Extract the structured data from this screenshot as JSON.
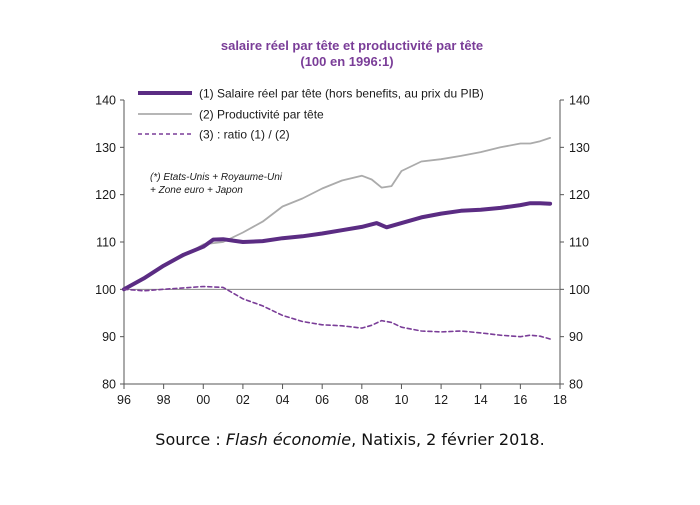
{
  "chart_data": {
    "type": "line",
    "title": "salaire réel par tête et productivité par tête",
    "subtitle": "(100 en 1996:1)",
    "x_tick_labels": [
      "96",
      "98",
      "00",
      "02",
      "04",
      "06",
      "08",
      "10",
      "12",
      "14",
      "16",
      "18"
    ],
    "x_ticks": [
      1996,
      1998,
      2000,
      2002,
      2004,
      2006,
      2008,
      2010,
      2012,
      2014,
      2016,
      2018
    ],
    "xlim": [
      1996,
      2018
    ],
    "ylim": [
      80,
      140
    ],
    "y_ticks": [
      80,
      90,
      100,
      110,
      120,
      130,
      140
    ],
    "secondary_y_ticks": [
      80,
      90,
      100,
      110,
      120,
      130,
      140
    ],
    "reference_line": 100,
    "grid": false,
    "legend_position": "top",
    "note": [
      "(*) Etats-Unis + Royaume-Uni",
      "+ Zone euro + Japon"
    ],
    "series": [
      {
        "name": "(1) Salaire réel par tête (hors benefits, au prix du PIB)",
        "color": "#5b2c83",
        "style": "solid-thick",
        "x": [
          1996,
          1997,
          1998,
          1999,
          2000,
          2000.5,
          2001,
          2001.5,
          2002,
          2003,
          2004,
          2005,
          2006,
          2007,
          2008,
          2008.75,
          2009.25,
          2010,
          2011,
          2012,
          2013,
          2014,
          2015,
          2016,
          2016.5,
          2017,
          2017.5
        ],
        "y": [
          100,
          102.3,
          105,
          107.3,
          109,
          110.5,
          110.6,
          110.3,
          110,
          110.2,
          110.8,
          111.2,
          111.8,
          112.5,
          113.2,
          114,
          113.1,
          114,
          115.2,
          116,
          116.6,
          116.8,
          117.2,
          117.8,
          118.2,
          118.2,
          118.1
        ]
      },
      {
        "name": "(2) Productivité par tête",
        "color": "#ababab",
        "style": "solid",
        "x": [
          1996,
          1997,
          1998,
          1999,
          2000,
          2001,
          2002,
          2003,
          2004,
          2005,
          2006,
          2007,
          2008,
          2008.5,
          2009,
          2009.5,
          2010,
          2011,
          2012,
          2013,
          2014,
          2015,
          2016,
          2016.5,
          2017,
          2017.5
        ],
        "y": [
          100,
          102.5,
          105,
          107,
          109.5,
          110,
          112,
          114.3,
          117.5,
          119.2,
          121.3,
          123,
          124,
          123.2,
          121.5,
          121.8,
          125,
          127,
          127.5,
          128.2,
          129,
          130,
          130.8,
          130.8,
          131.3,
          132
        ]
      },
      {
        "name": "(3) : ratio (1) / (2)",
        "color": "#7a3d98",
        "style": "dashed",
        "x": [
          1996,
          1997,
          1998,
          1999,
          2000,
          2001,
          2002,
          2003,
          2004,
          2005,
          2006,
          2007,
          2008,
          2008.5,
          2009,
          2009.5,
          2010,
          2011,
          2012,
          2013,
          2014,
          2015,
          2016,
          2016.5,
          2017,
          2017.5
        ],
        "y": [
          100,
          99.7,
          100,
          100.3,
          100.6,
          100.4,
          98,
          96.5,
          94.5,
          93.2,
          92.5,
          92.3,
          91.8,
          92.4,
          93.4,
          93,
          92,
          91.2,
          91,
          91.2,
          90.8,
          90.3,
          90,
          90.3,
          90.1,
          89.5
        ]
      }
    ]
  },
  "source": {
    "prefix": "Source : ",
    "publication": "Flash économie",
    "suffix": ", Natixis, 2 février 2018."
  }
}
